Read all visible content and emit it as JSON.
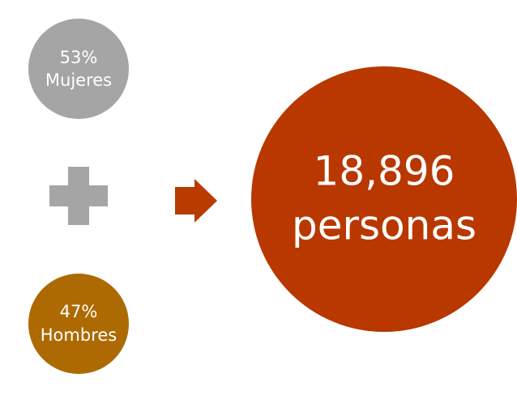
{
  "nodes": [
    {
      "lines": [
        "53%",
        "Mujeres"
      ]
    },
    {
      "lines": [
        "47%",
        "Hombres"
      ]
    },
    {
      "lines": [
        "18,896",
        "personas"
      ]
    }
  ]
}
